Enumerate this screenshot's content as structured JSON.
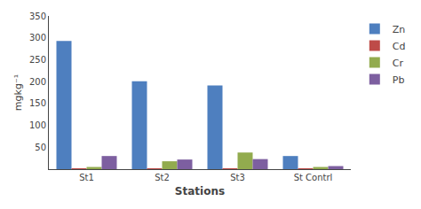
{
  "chart_data": {
    "type": "bar",
    "categories": [
      "St1",
      "St2",
      "St3",
      "St Contrl"
    ],
    "series": [
      {
        "name": "Zn",
        "color": "#4E7FBF",
        "values": [
          293,
          201,
          191,
          30
        ]
      },
      {
        "name": "Cd",
        "color": "#BE4B48",
        "values": [
          2,
          2,
          2,
          2
        ]
      },
      {
        "name": "Cr",
        "color": "#92AB4E",
        "values": [
          5,
          18,
          38,
          5
        ]
      },
      {
        "name": "Pb",
        "color": "#7D5FA0",
        "values": [
          30,
          22,
          23,
          7
        ]
      }
    ],
    "xlabel": "Stations",
    "ylabel": "mgkg⁻¹",
    "ylim": [
      0,
      350
    ],
    "yticks": [
      50,
      100,
      150,
      200,
      250,
      300,
      350
    ],
    "grid": false,
    "legend": "right"
  }
}
